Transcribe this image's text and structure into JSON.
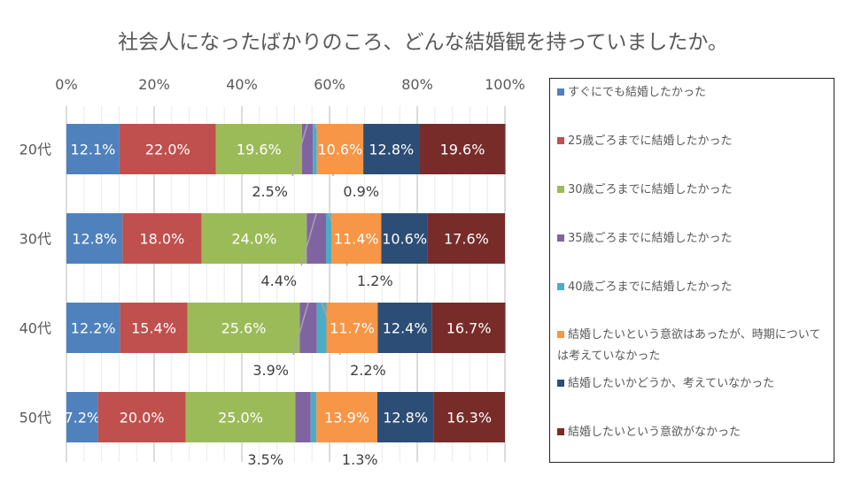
{
  "chart_data": {
    "type": "bar",
    "orientation": "horizontal",
    "stacked": "percent",
    "title": "社会人になったばかりのころ、どんな結婚観を持っていましたか。",
    "categories": [
      "20代",
      "30代",
      "40代",
      "50代"
    ],
    "xlim": [
      0,
      100
    ],
    "xticks": [
      "0%",
      "20%",
      "40%",
      "60%",
      "80%",
      "100%"
    ],
    "grid": true,
    "legend_position": "right",
    "series": [
      {
        "name": "すぐにでも結婚したかった",
        "color": "#4F81BD",
        "values": [
          12.1,
          12.8,
          12.2,
          7.2
        ],
        "labels": [
          "12.1%",
          "12.8%",
          "12.2%",
          "7.2%"
        ]
      },
      {
        "name": "25歳ごろまでに結婚したかった",
        "color": "#C0504D",
        "values": [
          22.0,
          18.0,
          15.4,
          20.0
        ],
        "labels": [
          "22.0%",
          "18.0%",
          "15.4%",
          "20.0%"
        ]
      },
      {
        "name": "30歳ごろまでに結婚したかった",
        "color": "#9BBB59",
        "values": [
          19.6,
          24.0,
          25.6,
          25.0
        ],
        "labels": [
          "19.6%",
          "24.0%",
          "25.6%",
          "25.0%"
        ]
      },
      {
        "name": "35歳ごろまでに結婚したかった",
        "color": "#8064A2",
        "values": [
          2.5,
          4.4,
          3.9,
          3.5
        ],
        "labels": [
          "2.5%",
          "4.4%",
          "3.9%",
          "3.5%"
        ]
      },
      {
        "name": "40歳ごろまでに結婚したかった",
        "color": "#4BACC6",
        "values": [
          0.9,
          1.2,
          2.2,
          1.3
        ],
        "labels": [
          "0.9%",
          "1.2%",
          "2.2%",
          "1.3%"
        ]
      },
      {
        "name": "結婚したいという意欲はあったが、時期については考えていなかった",
        "color": "#F79646",
        "values": [
          10.6,
          11.4,
          11.7,
          13.9
        ],
        "labels": [
          "10.6%",
          "11.4%",
          "11.7%",
          "13.9%"
        ]
      },
      {
        "name": "結婚したいかどうか、考えていなかった",
        "color": "#2C4D75",
        "values": [
          12.8,
          10.6,
          12.4,
          12.8
        ],
        "labels": [
          "12.8%",
          "10.6%",
          "12.4%",
          "12.8%"
        ]
      },
      {
        "name": "結婚したいという意欲がなかった",
        "color": "#772C2A",
        "values": [
          19.6,
          17.6,
          16.7,
          16.3
        ],
        "labels": [
          "19.6%",
          "17.6%",
          "16.7%",
          "16.3%"
        ]
      }
    ]
  }
}
